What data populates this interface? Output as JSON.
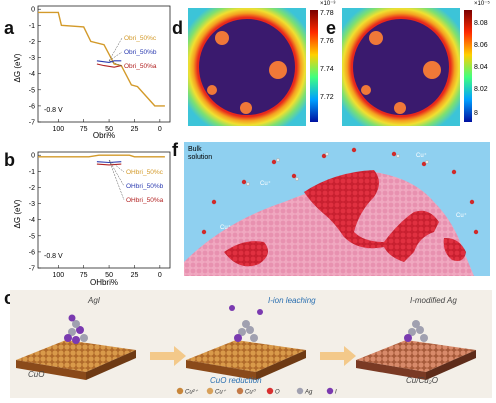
{
  "panels": {
    "a": "a",
    "b": "b",
    "c": "c",
    "d": "d",
    "e": "e",
    "f": "f"
  },
  "chart_a": {
    "type": "line",
    "ylabel": "ΔG (eV)",
    "xlabel": "Obri%",
    "yticks": [
      "0",
      "-1",
      "-2",
      "-3",
      "-4",
      "-5",
      "-6",
      "-7"
    ],
    "xticks": [
      "100",
      "75",
      "50",
      "25",
      "0"
    ],
    "potential": "-0.8 V",
    "legend": [
      {
        "name": "Obri_50%c",
        "color": "#d39a2a"
      },
      {
        "name": "Obri_50%b",
        "color": "#2b3bb0"
      },
      {
        "name": "Obri_50%a",
        "color": "#b22222"
      }
    ]
  },
  "chart_b": {
    "type": "line",
    "ylabel": "ΔG (eV)",
    "xlabel": "OHbri%",
    "yticks": [
      "0",
      "-1",
      "-2",
      "-3",
      "-4",
      "-5",
      "-6",
      "-7"
    ],
    "xticks": [
      "100",
      "75",
      "50",
      "25",
      "0"
    ],
    "potential": "-0.8 V",
    "legend": [
      {
        "name": "OHbri_50%c",
        "color": "#d39a2a"
      },
      {
        "name": "OHbri_50%b",
        "color": "#2b3bb0"
      },
      {
        "name": "OHbri_50%a",
        "color": "#b22222"
      }
    ]
  },
  "chart_data": [
    {
      "type": "line",
      "xlabel": "Obri%",
      "ylabel": "ΔG (eV)",
      "xlim": [
        120,
        -10
      ],
      "ylim": [
        -7,
        0.2
      ],
      "series": [
        {
          "name": "Obri_50%c",
          "x": [
            120,
            100,
            97,
            75,
            68,
            55,
            45,
            38,
            28,
            22,
            5,
            0,
            -5
          ],
          "y": [
            -0.2,
            -0.2,
            -1.0,
            -1.1,
            -2.0,
            -2.2,
            -3.4,
            -3.5,
            -4.7,
            -4.8,
            -6.0,
            -6.0,
            -6.0
          ]
        },
        {
          "name": "Obri_50%b",
          "x": [
            62,
            50,
            45,
            38
          ],
          "y": [
            -3.2,
            -3.3,
            -3.2,
            -3.2
          ]
        },
        {
          "name": "Obri_50%a",
          "x": [
            62,
            55,
            45,
            38
          ],
          "y": [
            -3.4,
            -3.5,
            -3.6,
            -3.5
          ]
        }
      ]
    },
    {
      "type": "line",
      "xlabel": "OHbri%",
      "ylabel": "ΔG (eV)",
      "xlim": [
        120,
        -10
      ],
      "ylim": [
        -7,
        0.2
      ],
      "series": [
        {
          "name": "OHbri_50%c",
          "x": [
            120,
            70,
            60,
            30,
            25,
            0,
            -5
          ],
          "y": [
            -0.1,
            -0.1,
            0.0,
            0.0,
            -0.1,
            -0.1,
            -0.1
          ]
        },
        {
          "name": "OHbri_50%b",
          "x": [
            62,
            50,
            38
          ],
          "y": [
            -0.4,
            -0.45,
            -0.4
          ]
        },
        {
          "name": "OHbri_50%a",
          "x": [
            62,
            50,
            38
          ],
          "y": [
            -0.55,
            -0.6,
            -0.55
          ]
        }
      ]
    }
  ],
  "colorbar_d": {
    "exp": "×10⁻³",
    "ticks": [
      "7.78",
      "7.76",
      "7.74",
      "7.72"
    ]
  },
  "colorbar_e": {
    "exp": "×10⁻⁵",
    "ticks": [
      "8.08",
      "8.06",
      "8.04",
      "8.02",
      "8"
    ]
  },
  "panel_f": {
    "bulk": "Bulk\nsolution",
    "labels": [
      "Cu⁺",
      "Cu⁺",
      "Cu⁺",
      "Cu⁺"
    ]
  },
  "panel_c": {
    "agi": "AgI",
    "cuo": "CuO",
    "leaching": "I-ion leaching",
    "reduction": "CuO reduction",
    "imod": "I-modified Ag",
    "cu2o": "Cu/Cu₂O",
    "legend": [
      {
        "label": "Cu²⁺",
        "color": "#c8863a"
      },
      {
        "label": "Cu⁺",
        "color": "#d8a15a"
      },
      {
        "label": "Cu⁰",
        "color": "#c47a48"
      },
      {
        "label": "O",
        "color": "#d83030"
      },
      {
        "label": "Ag",
        "color": "#a0a0b0"
      },
      {
        "label": "I",
        "color": "#7a3ab0"
      }
    ]
  }
}
